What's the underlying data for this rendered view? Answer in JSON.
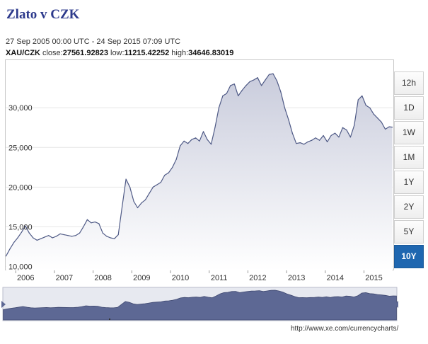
{
  "page": {
    "title": "Zlato v CZK",
    "date_range": "27 Sep 2005 00:00 UTC - 24 Sep 2015 07:09 UTC",
    "pair": "XAU/CZK",
    "close_label": "close:",
    "close_value": "27561.92823",
    "low_label": "low:",
    "low_value": "11215.42252",
    "high_label": "high:",
    "high_value": "34646.83019",
    "source_url": "http://www.xe.com/currencycharts/"
  },
  "timeframes": {
    "buttons": [
      "12h",
      "1D",
      "1W",
      "1M",
      "1Y",
      "2Y",
      "5Y",
      "10Y"
    ],
    "active": "10Y"
  },
  "colors": {
    "line": "#4f5a86",
    "area_top": "#c9ccdc",
    "area_bottom": "#ffffff",
    "grid": "#e6e6e6",
    "navigator_fill": "#5d6894",
    "navigator_bg": "#e7e9f0",
    "active_button": "#1f67b0",
    "title": "#2d3a8c"
  },
  "chart_data": {
    "type": "area",
    "series": [
      {
        "x": [
          2005.75,
          2005.85,
          2005.95,
          2006.05,
          2006.15,
          2006.25,
          2006.35,
          2006.45,
          2006.55,
          2006.65,
          2006.75,
          2006.85,
          2006.95,
          2007.05,
          2007.15,
          2007.25,
          2007.35,
          2007.45,
          2007.55,
          2007.65,
          2007.75,
          2007.85,
          2007.95,
          2008.05,
          2008.15,
          2008.25,
          2008.35,
          2008.45,
          2008.55,
          2008.65,
          2008.75,
          2008.85,
          2008.95,
          2009.05,
          2009.15,
          2009.25,
          2009.35,
          2009.45,
          2009.55,
          2009.65,
          2009.75,
          2009.85,
          2009.95,
          2010.05,
          2010.15,
          2010.25,
          2010.35,
          2010.45,
          2010.55,
          2010.65,
          2010.75,
          2010.85,
          2010.95,
          2011.05,
          2011.15,
          2011.25,
          2011.35,
          2011.45,
          2011.55,
          2011.65,
          2011.75,
          2011.85,
          2011.95,
          2012.05,
          2012.15,
          2012.25,
          2012.35,
          2012.45,
          2012.55,
          2012.65,
          2012.75,
          2012.85,
          2012.95,
          2013.05,
          2013.15,
          2013.25,
          2013.35,
          2013.45,
          2013.55,
          2013.65,
          2013.75,
          2013.85,
          2013.95,
          2014.05,
          2014.15,
          2014.25,
          2014.35,
          2014.45,
          2014.55,
          2014.65,
          2014.75,
          2014.85,
          2014.95,
          2015.05,
          2015.15,
          2015.25,
          2015.35,
          2015.45,
          2015.55,
          2015.65,
          2015.73
        ],
        "values": [
          11300,
          12200,
          13000,
          13600,
          14300,
          15100,
          14200,
          13600,
          13300,
          13500,
          13700,
          13900,
          13600,
          13800,
          14100,
          14000,
          13900,
          13800,
          13900,
          14200,
          15000,
          15900,
          15500,
          15600,
          15400,
          14200,
          13800,
          13600,
          13500,
          14000,
          17500,
          21000,
          20000,
          18200,
          17400,
          18000,
          18400,
          19200,
          20000,
          20300,
          20600,
          21500,
          21800,
          22500,
          23500,
          25200,
          25800,
          25500,
          26000,
          26200,
          25800,
          27000,
          26000,
          25400,
          27500,
          30000,
          31500,
          31800,
          32800,
          33000,
          31500,
          32200,
          32800,
          33300,
          33500,
          33800,
          32800,
          33500,
          34200,
          34300,
          33400,
          32000,
          30000,
          28500,
          26800,
          25500,
          25600,
          25400,
          25700,
          25900,
          26200,
          25900,
          26500,
          25700,
          26500,
          26800,
          26300,
          27500,
          27200,
          26300,
          27800,
          31000,
          31500,
          30300,
          30000,
          29200,
          28700,
          28200,
          27300,
          27600,
          27562
        ]
      }
    ],
    "ylim": [
      9500,
      36000
    ],
    "xlim": [
      2005.74,
      2015.74
    ],
    "yticks": [
      10000,
      15000,
      20000,
      25000,
      30000
    ],
    "ytick_labels": [
      "10,000",
      "15,000",
      "20,000",
      "25,000",
      "30,000"
    ],
    "xticks": [
      2006,
      2007,
      2008,
      2009,
      2010,
      2011,
      2012,
      2013,
      2014,
      2015
    ],
    "xtick_labels": [
      "2006",
      "2007",
      "2008",
      "2009",
      "2010",
      "2011",
      "2012",
      "2013",
      "2014",
      "2015"
    ],
    "grid": true,
    "legend": "none"
  }
}
